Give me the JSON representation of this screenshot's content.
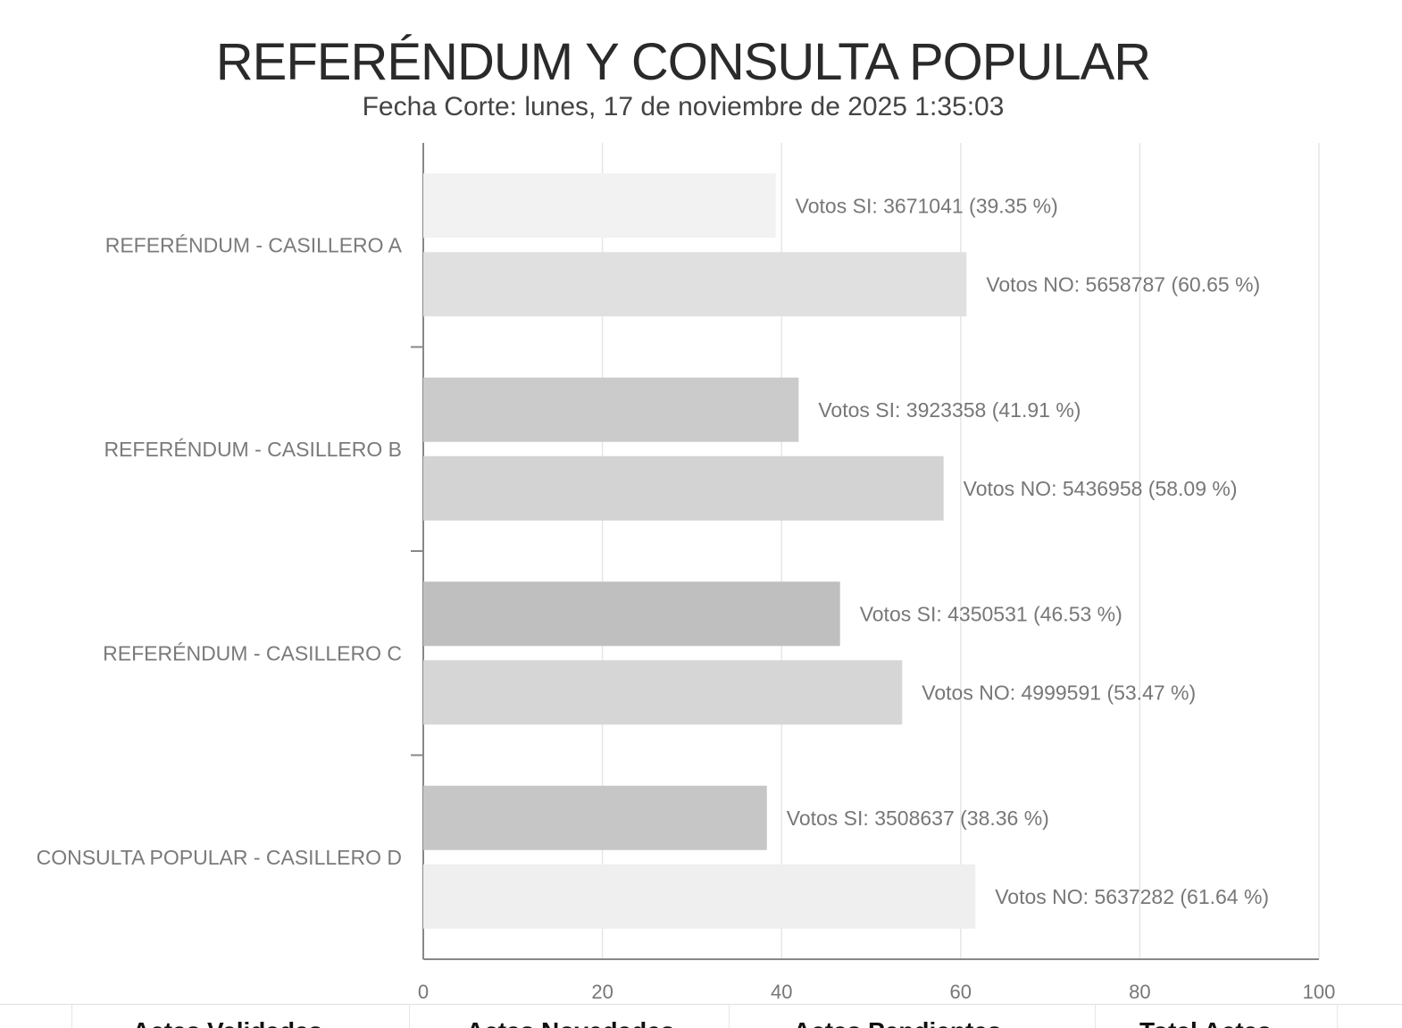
{
  "chart_data": {
    "type": "bar",
    "orientation": "horizontal",
    "title": "REFERÉNDUM Y CONSULTA POPULAR",
    "subtitle": "Fecha Corte: lunes, 17 de noviembre de 2025 1:35:03",
    "categories": [
      "REFERÉNDUM - CASILLERO A",
      "REFERÉNDUM - CASILLERO B",
      "REFERÉNDUM - CASILLERO C",
      "CONSULTA POPULAR - CASILLERO D"
    ],
    "series": [
      {
        "values": [
          39.35,
          41.91,
          46.53,
          38.36
        ],
        "labels": [
          "Votos SI: 3671041 (39.35 %)",
          "Votos SI: 3923358 (41.91 %)",
          "Votos SI: 4350531 (46.53 %)",
          "Votos SI: 3508637 (38.36 %)"
        ],
        "colors": [
          "#f2f2f2",
          "#cbcbcb",
          "#bfbfbf",
          "#c6c6c6"
        ]
      },
      {
        "values": [
          60.65,
          58.09,
          53.47,
          61.64
        ],
        "labels": [
          "Votos NO: 5658787 (60.65 %)",
          "Votos NO: 5436958 (58.09 %)",
          "Votos NO: 4999591 (53.47 %)",
          "Votos NO: 5637282 (61.64 %)"
        ],
        "colors": [
          "#e0e0e0",
          "#d3d3d3",
          "#d6d6d6",
          "#efefef"
        ]
      }
    ],
    "xlim": [
      0,
      100
    ],
    "xticks": [
      "0",
      "20",
      "40",
      "60",
      "80",
      "100"
    ],
    "grid": true,
    "legend": "none"
  },
  "footer": {
    "columns": [
      "Actas Validadas",
      "Actas Novedades",
      "Actas Pendientes",
      "Total Actas"
    ]
  },
  "colors": {
    "axis": "#888888",
    "grid": "#e6e6e6",
    "label_text": "#777777",
    "category_text": "#7a7a7a"
  }
}
